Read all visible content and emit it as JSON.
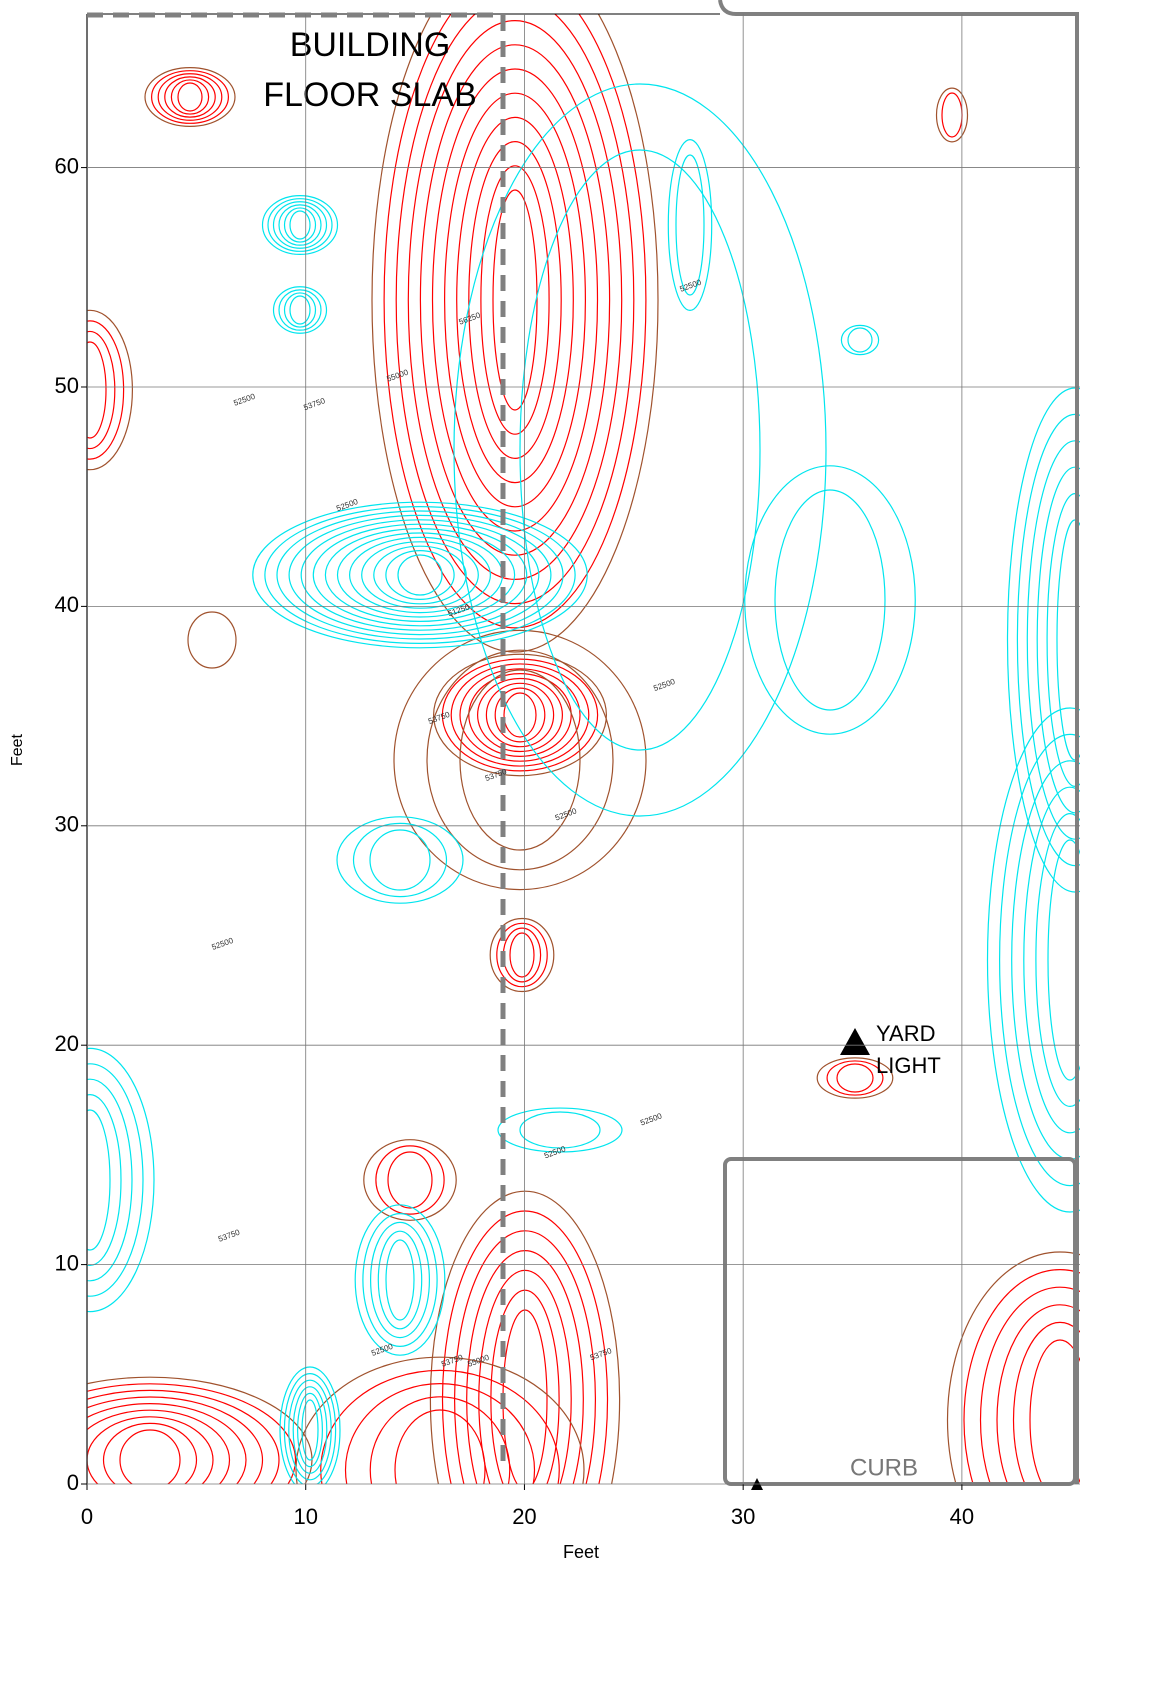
{
  "chart_data": {
    "type": "contour",
    "x_label": "Feet",
    "y_label": "Feet",
    "xlim": [
      0,
      45.4
    ],
    "ylim": [
      0,
      67
    ],
    "xticks": [
      0,
      10,
      20,
      30,
      40
    ],
    "yticks": [
      0,
      10,
      20,
      30,
      40,
      50,
      60
    ],
    "grid": true,
    "high_color": "#ff0000",
    "mid_color": "#a0522d",
    "low_color": "#00e5ee",
    "contour_labels": [
      {
        "value": 52500,
        "x": 7.2,
        "y": 49.4
      },
      {
        "value": 53750,
        "x": 10.4,
        "y": 49.2
      },
      {
        "value": 55000,
        "x": 14.2,
        "y": 50.5
      },
      {
        "value": 56250,
        "x": 17.5,
        "y": 53.1
      },
      {
        "value": 52500,
        "x": 27.6,
        "y": 54.6
      },
      {
        "value": 52500,
        "x": 11.9,
        "y": 44.6
      },
      {
        "value": 51250,
        "x": 17.0,
        "y": 39.8
      },
      {
        "value": 53750,
        "x": 16.1,
        "y": 34.9
      },
      {
        "value": 52500,
        "x": 26.4,
        "y": 36.4
      },
      {
        "value": 52500,
        "x": 21.9,
        "y": 30.5
      },
      {
        "value": 52500,
        "x": 6.2,
        "y": 24.6
      },
      {
        "value": 53750,
        "x": 18.7,
        "y": 32.3
      },
      {
        "value": 52500,
        "x": 21.4,
        "y": 15.1
      },
      {
        "value": 52500,
        "x": 25.8,
        "y": 16.6
      },
      {
        "value": 53750,
        "x": 6.5,
        "y": 11.3
      },
      {
        "value": 52500,
        "x": 13.5,
        "y": 6.1
      },
      {
        "value": 53750,
        "x": 16.7,
        "y": 5.6
      },
      {
        "value": 55000,
        "x": 17.9,
        "y": 5.6
      },
      {
        "value": 53750,
        "x": 23.5,
        "y": 5.9
      }
    ],
    "annotations": [
      "BUILDING",
      "FLOOR SLAB",
      "YARD",
      "LIGHT",
      "CURB"
    ]
  }
}
